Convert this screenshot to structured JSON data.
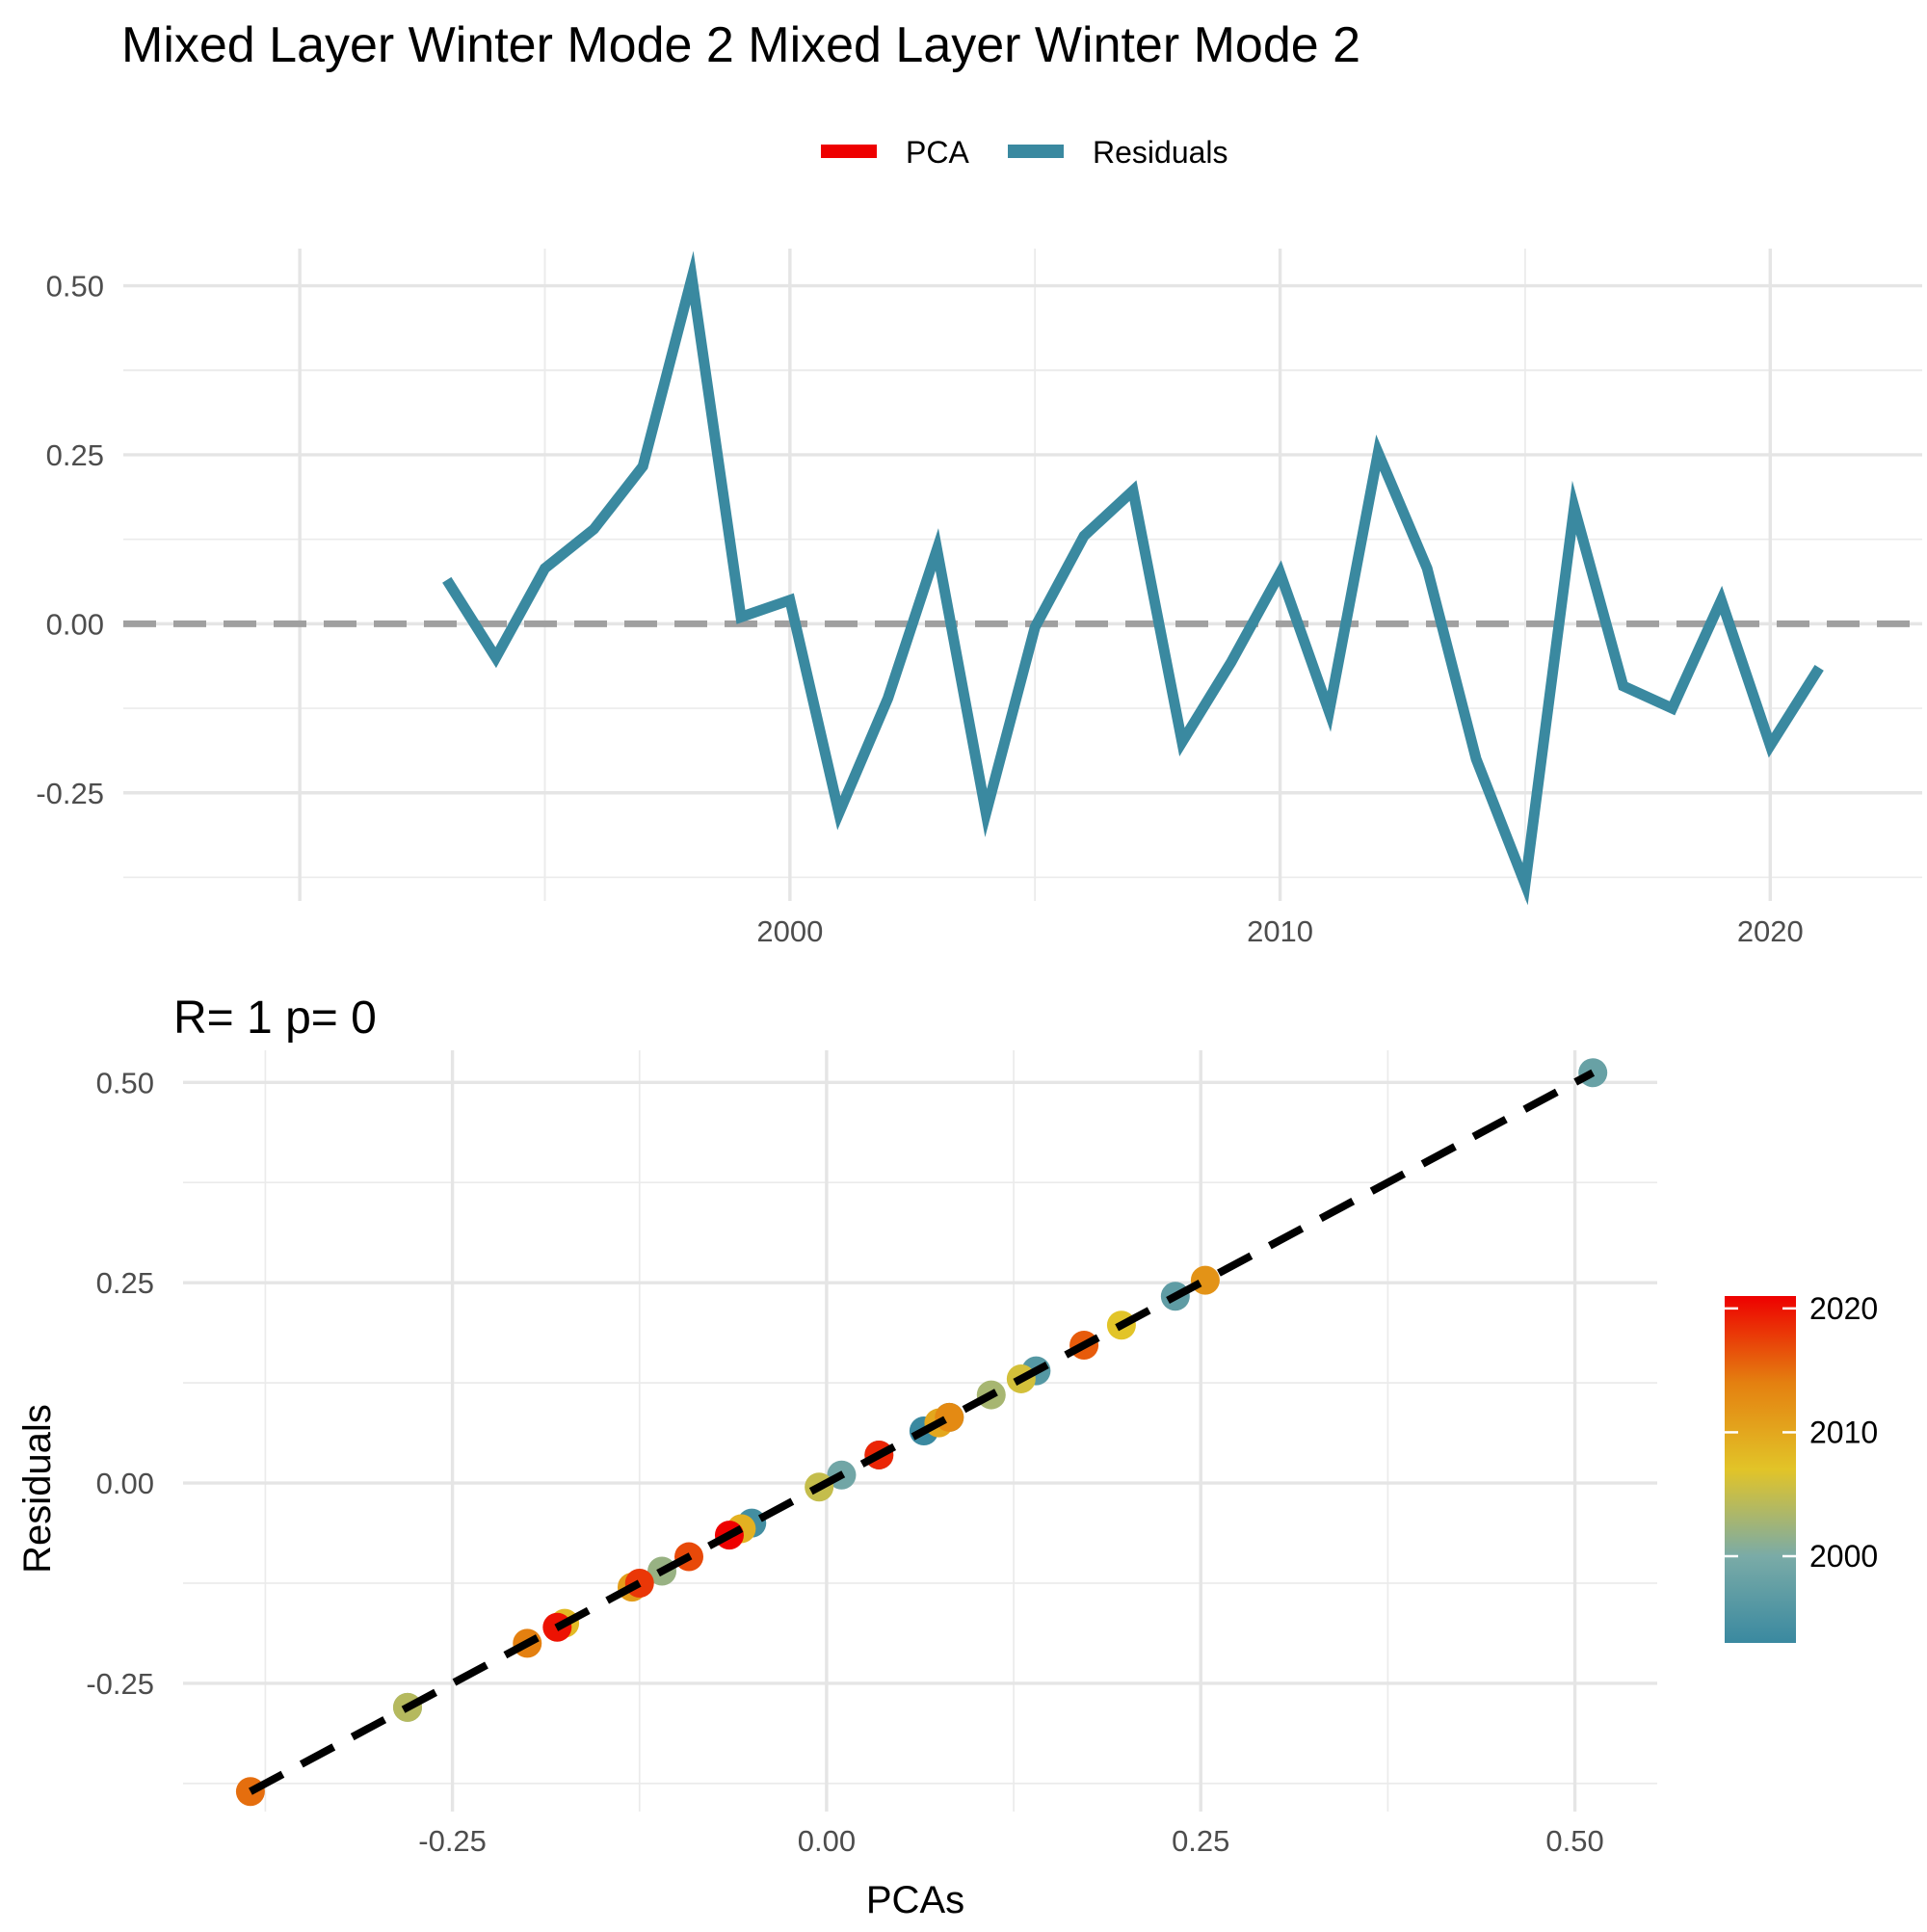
{
  "title": "Mixed Layer Winter Mode 2 Mixed Layer Winter Mode 2",
  "legend": {
    "items": [
      {
        "label": "PCA",
        "color": "#ee0000"
      },
      {
        "label": "Residuals",
        "color": "#3a89a0"
      }
    ],
    "position": "top"
  },
  "colors": {
    "residual_line": "#3a89a0",
    "zero_line": "#a0a0a0",
    "fit_line": "#000000"
  },
  "chart_data": [
    {
      "type": "line",
      "xlim": [
        1986.4,
        2023.1
      ],
      "ylim": [
        -0.41,
        0.555
      ],
      "x_ticks": [
        2000,
        2010,
        2020
      ],
      "x_tick_labels": [
        "2000",
        "2010",
        "2020"
      ],
      "y_ticks": [
        -0.25,
        0,
        0.25,
        0.5
      ],
      "y_tick_labels": [
        "-0.25",
        "0.00",
        "0.25",
        "0.50"
      ],
      "grid": true,
      "series": [
        {
          "name": "Residuals",
          "x": [
            1993,
            1994,
            1995,
            1996,
            1997,
            1998,
            1999,
            2000,
            2001,
            2002,
            2003,
            2004,
            2005,
            2006,
            2007,
            2008,
            2009,
            2010,
            2011,
            2012,
            2013,
            2014,
            2015,
            2016,
            2017,
            2018,
            2019,
            2020,
            2021
          ],
          "values": [
            0.065,
            -0.05,
            0.082,
            0.14,
            0.233,
            0.512,
            0.01,
            0.035,
            -0.28,
            -0.11,
            0.11,
            -0.28,
            -0.005,
            0.13,
            0.197,
            -0.175,
            -0.057,
            0.075,
            -0.13,
            0.253,
            0.082,
            -0.2,
            -0.385,
            0.172,
            -0.092,
            -0.125,
            0.035,
            -0.18,
            -0.065
          ]
        }
      ],
      "reference_line": {
        "y": 0,
        "style": "dashed"
      }
    },
    {
      "type": "scatter",
      "subtitle": "R= 1  p= 0",
      "xlabel": "PCAs",
      "ylabel": "Residuals",
      "xlim": [
        -0.43,
        0.555
      ],
      "ylim": [
        -0.41,
        0.54
      ],
      "x_ticks": [
        -0.25,
        0,
        0.25,
        0.5
      ],
      "x_tick_labels": [
        "-0.25",
        "0.00",
        "0.25",
        "0.50"
      ],
      "y_ticks": [
        -0.25,
        0,
        0.25,
        0.5
      ],
      "y_tick_labels": [
        "-0.25",
        "0.00",
        "0.25",
        "0.50"
      ],
      "grid": true,
      "color_by": "year",
      "colorbar": {
        "range": [
          1993,
          2021
        ],
        "ticks": [
          2000,
          2010,
          2020
        ],
        "tick_labels": [
          "2000",
          "2010",
          "2020"
        ],
        "position": "right"
      },
      "fit_line": {
        "from": [
          -0.385,
          -0.385
        ],
        "to": [
          0.512,
          0.512
        ],
        "style": "dashed"
      },
      "points": {
        "year": [
          1993,
          1994,
          1995,
          1996,
          1997,
          1998,
          1999,
          2000,
          2001,
          2002,
          2003,
          2004,
          2005,
          2006,
          2007,
          2008,
          2009,
          2010,
          2011,
          2012,
          2013,
          2014,
          2015,
          2016,
          2017,
          2018,
          2019,
          2020,
          2021
        ],
        "x": [
          0.065,
          -0.05,
          0.082,
          0.14,
          0.233,
          0.512,
          0.01,
          0.035,
          -0.28,
          -0.11,
          0.11,
          -0.28,
          -0.005,
          0.13,
          0.197,
          -0.175,
          -0.057,
          0.075,
          -0.13,
          0.253,
          0.082,
          -0.2,
          -0.385,
          0.172,
          -0.092,
          -0.125,
          0.035,
          -0.18,
          -0.065
        ],
        "y": [
          0.065,
          -0.05,
          0.082,
          0.14,
          0.233,
          0.512,
          0.01,
          0.035,
          -0.28,
          -0.11,
          0.11,
          -0.28,
          -0.005,
          0.13,
          0.197,
          -0.175,
          -0.057,
          0.075,
          -0.13,
          0.253,
          0.082,
          -0.2,
          -0.385,
          0.172,
          -0.092,
          -0.125,
          0.035,
          -0.18,
          -0.065
        ]
      }
    }
  ]
}
